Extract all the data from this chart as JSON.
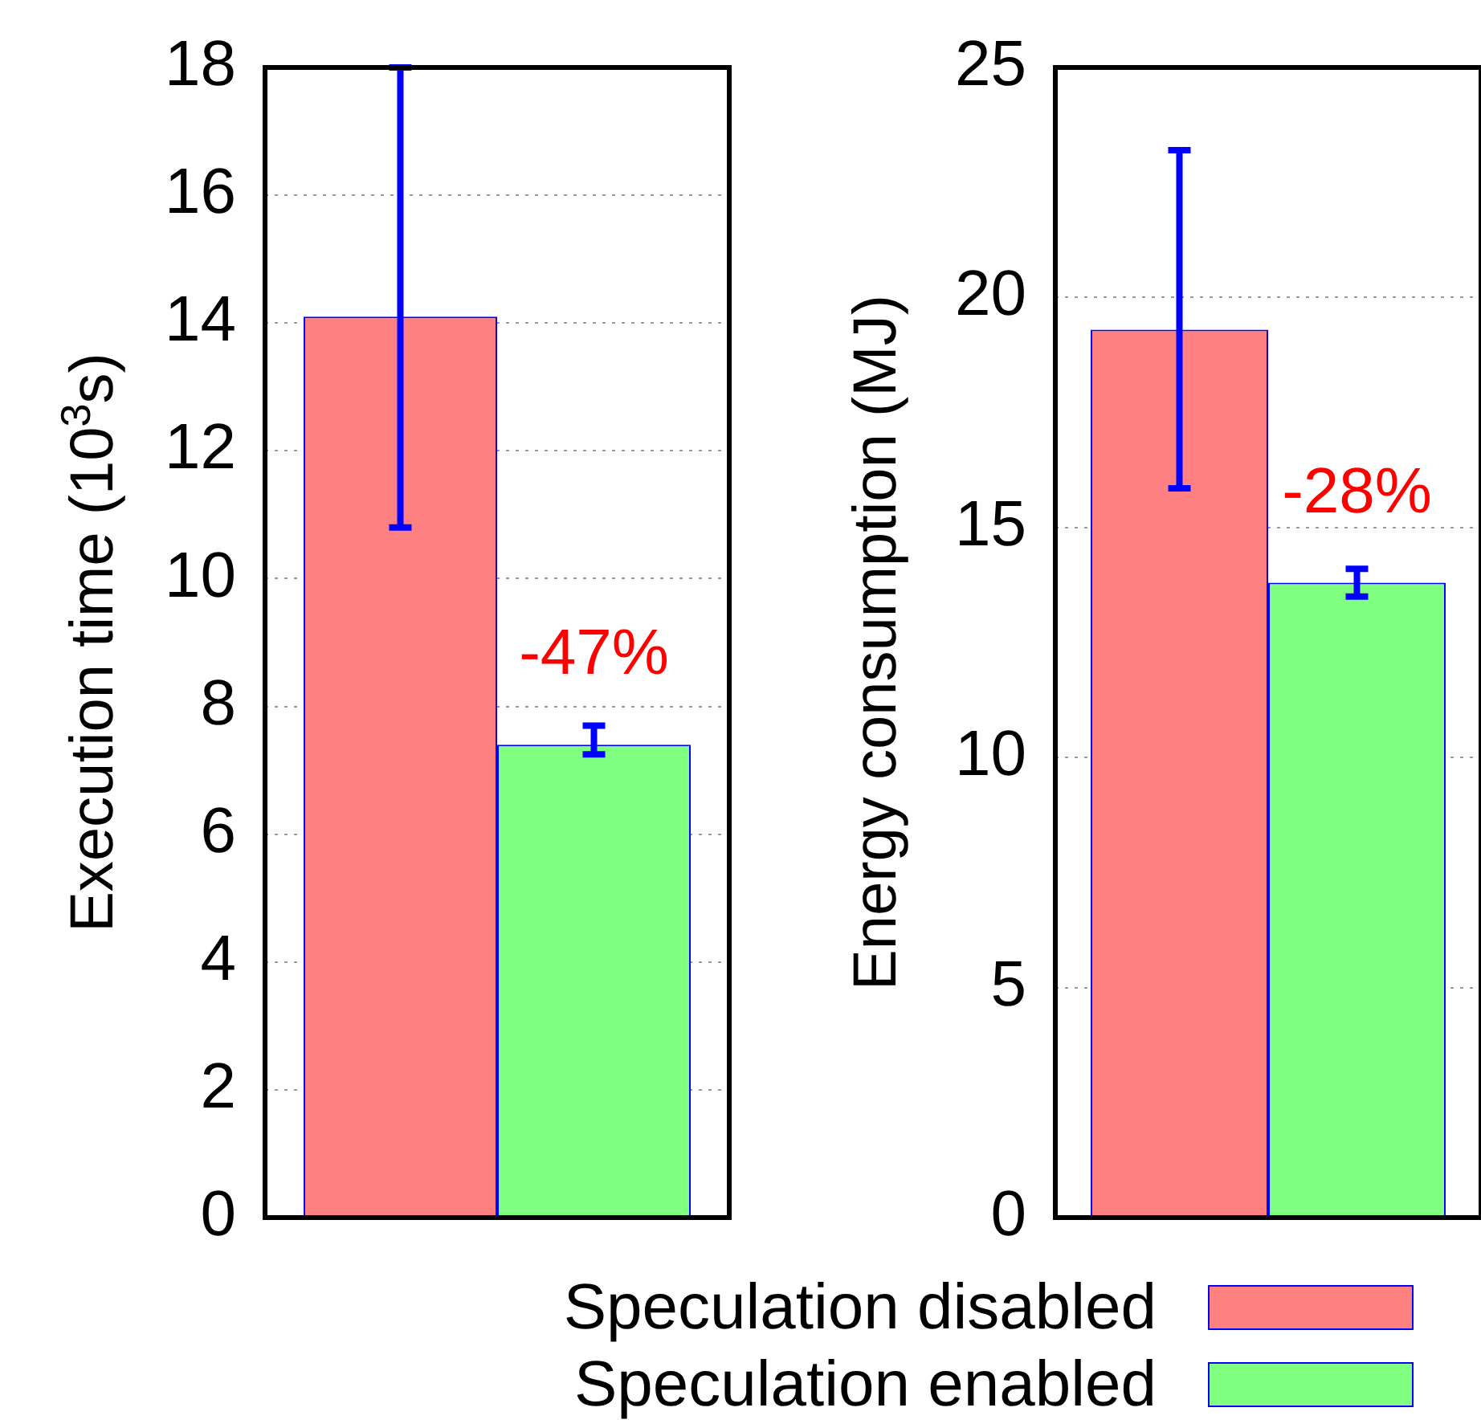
{
  "chart_data": [
    {
      "type": "bar",
      "ylabel": "Execution time (10$^{3}$s)",
      "categories": [
        null
      ],
      "ylim": [
        0,
        18
      ],
      "yticks": [
        0,
        2,
        4,
        6,
        8,
        10,
        12,
        14,
        16,
        18
      ],
      "grid": "y",
      "legend": "bottom",
      "series": [
        {
          "name": "Speculation disabled",
          "color": "#ff8080",
          "values": [
            14.1
          ],
          "errors": [
            [
              10.8,
              18.0
            ]
          ]
        },
        {
          "name": "Speculation enabled",
          "color": "#80ff80",
          "values": [
            7.4
          ],
          "errors": [
            [
              7.25,
              7.7
            ]
          ]
        }
      ],
      "annotations": [
        "-47%"
      ]
    },
    {
      "type": "bar",
      "ylabel": "Energy consumption (MJ)",
      "categories": [
        null
      ],
      "ylim": [
        0,
        25
      ],
      "yticks": [
        0,
        5,
        10,
        15,
        20,
        25
      ],
      "grid": "y",
      "series": [
        {
          "color": "#ff8080",
          "values": [
            19.3
          ],
          "errors": [
            [
              15.85,
              23.2
            ]
          ]
        },
        {
          "color": "#80ff80",
          "values": [
            13.8
          ],
          "errors": [
            [
              13.5,
              14.1
            ]
          ]
        }
      ],
      "annotations": [
        "-28%"
      ]
    }
  ]
}
